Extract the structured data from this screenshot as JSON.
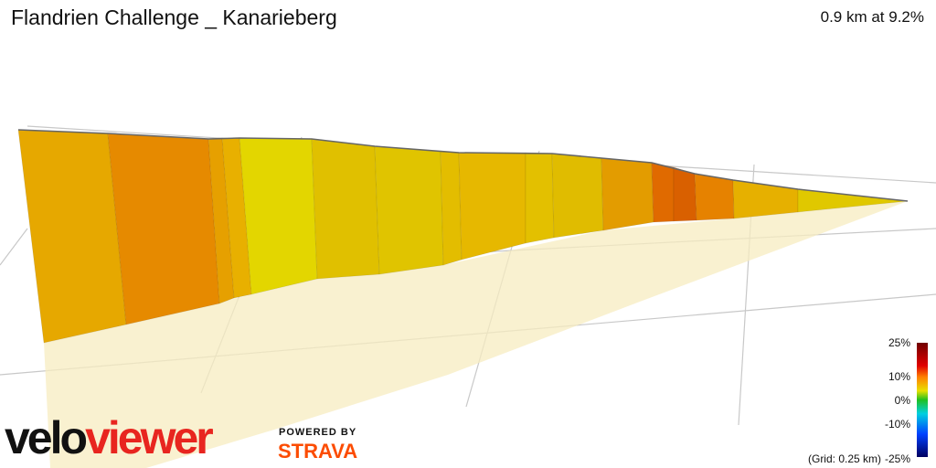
{
  "header": {
    "title": "Flandrien Challenge _ Kanarieberg",
    "stat": "0.9 km at 9.2%"
  },
  "legend": {
    "labels": [
      "25%",
      "10%",
      "0%",
      "-10%",
      "-25%"
    ],
    "grid_note": "(Grid: 0.25 km)"
  },
  "branding": {
    "logo_a": "velo",
    "logo_b": "viewer",
    "powered": "POWERED BY",
    "strava": "STRAVA"
  }
}
